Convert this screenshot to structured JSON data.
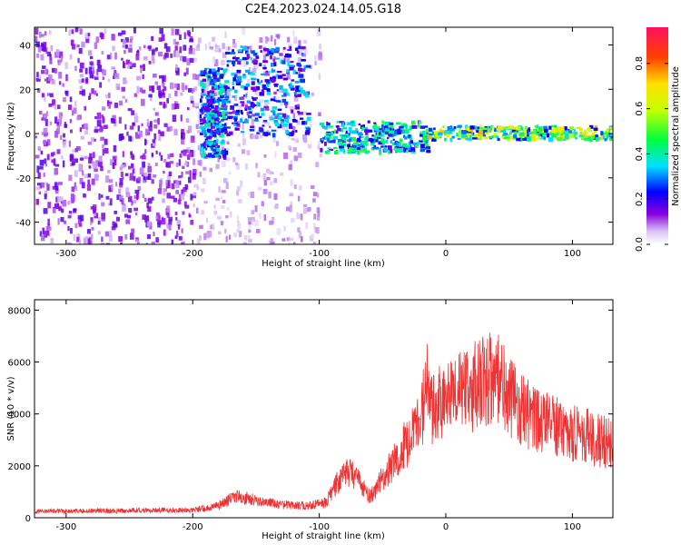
{
  "title": "C2E4.2023.024.14.05.G18",
  "chart_data": [
    {
      "type": "heatmap",
      "title": "C2E4.2023.024.14.05.G18",
      "xlabel": "Height of straight line (km)",
      "ylabel": "Frequency (Hz)",
      "xlim": [
        -325,
        132
      ],
      "ylim": [
        -50,
        48
      ],
      "xticks": [
        -300,
        -200,
        -100,
        0,
        100
      ],
      "yticks": [
        -40,
        -20,
        0,
        20,
        40
      ],
      "grid": false,
      "noise_region": {
        "x_range": [
          -325,
          -100
        ],
        "y_range": [
          -50,
          48
        ]
      },
      "features": [
        {
          "x_range": [
            -195,
            -175
          ],
          "y_range": [
            -10,
            30
          ],
          "amplitude": 0.35
        },
        {
          "x_range": [
            -175,
            -110
          ],
          "y_range": [
            0,
            40
          ],
          "amplitude": 0.3
        },
        {
          "x_range": [
            -100,
            -15
          ],
          "y_range": [
            -8,
            6
          ],
          "amplitude": 0.4
        },
        {
          "x_range": [
            -15,
            132
          ],
          "y_range": [
            -2,
            4
          ],
          "amplitude": 0.6
        }
      ],
      "colorbar": {
        "label": "Normalized spectral amplitude",
        "range": [
          0.0,
          0.96
        ],
        "ticks": [
          0.0,
          0.2,
          0.4,
          0.6,
          0.8
        ]
      }
    },
    {
      "type": "line",
      "xlabel": "Height of straight line (km)",
      "ylabel": "SNR (10 * v/v)",
      "xlim": [
        -325,
        132
      ],
      "ylim": [
        0,
        8400
      ],
      "xticks": [
        -300,
        -200,
        -100,
        0,
        100
      ],
      "yticks": [
        0,
        2000,
        4000,
        6000,
        8000
      ],
      "grid": false,
      "color": "#f03232",
      "x": [
        -325,
        -300,
        -250,
        -200,
        -180,
        -165,
        -150,
        -130,
        -110,
        -95,
        -80,
        -70,
        -60,
        -50,
        -40,
        -30,
        -20,
        -15,
        -10,
        0,
        10,
        20,
        30,
        40,
        50,
        60,
        80,
        100,
        120,
        132
      ],
      "y": [
        250,
        260,
        280,
        300,
        450,
        850,
        650,
        500,
        450,
        600,
        1800,
        1500,
        800,
        1500,
        2200,
        3000,
        3800,
        5000,
        4200,
        4500,
        4800,
        5000,
        5200,
        5400,
        4700,
        4100,
        3600,
        3300,
        3000,
        2800
      ]
    }
  ]
}
